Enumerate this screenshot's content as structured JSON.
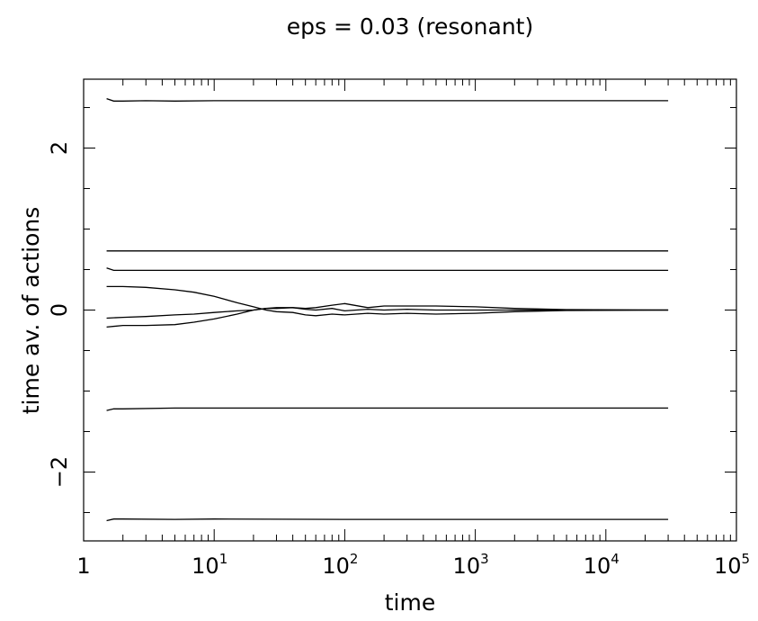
{
  "chart_data": {
    "type": "line",
    "title": "eps = 0.03 (resonant)",
    "xlabel": "time",
    "ylabel": "time av. of actions",
    "xscale": "log",
    "xlim": [
      1,
      100000
    ],
    "ylim": [
      -2.85,
      2.85
    ],
    "grid": false,
    "legend": "none",
    "x_ticks": [
      {
        "base": "1",
        "exp": ""
      },
      {
        "base": "10",
        "exp": "1"
      },
      {
        "base": "10",
        "exp": "2"
      },
      {
        "base": "10",
        "exp": "3"
      },
      {
        "base": "10",
        "exp": "4"
      },
      {
        "base": "10",
        "exp": "5"
      }
    ],
    "y_ticks": [
      "−2",
      "0",
      "2"
    ],
    "y_tick_values": [
      -2,
      0,
      2
    ],
    "line_color": "#000000",
    "series": [
      {
        "x": [
          1.5,
          1.7,
          2,
          3,
          5,
          10,
          30,
          100,
          1000,
          30000
        ],
        "y": [
          2.61,
          2.58,
          2.58,
          2.585,
          2.58,
          2.585,
          2.585,
          2.585,
          2.585,
          2.585
        ]
      },
      {
        "x": [
          1.5,
          2,
          5,
          10,
          100,
          1000,
          30000
        ],
        "y": [
          0.73,
          0.73,
          0.73,
          0.73,
          0.73,
          0.73,
          0.73
        ]
      },
      {
        "x": [
          1.5,
          1.7,
          2,
          5,
          10,
          100,
          1000,
          30000
        ],
        "y": [
          0.52,
          0.49,
          0.49,
          0.49,
          0.49,
          0.49,
          0.49,
          0.49
        ]
      },
      {
        "x": [
          1.5,
          2,
          3,
          5,
          7,
          10,
          15,
          20,
          25,
          30,
          40,
          50,
          60,
          80,
          100,
          150,
          200,
          300,
          500,
          1000,
          2000,
          5000,
          30000
        ],
        "y": [
          0.29,
          0.29,
          0.28,
          0.25,
          0.22,
          0.17,
          0.09,
          0.04,
          0.0,
          -0.02,
          -0.03,
          -0.06,
          -0.07,
          -0.05,
          -0.06,
          -0.04,
          -0.05,
          -0.04,
          -0.05,
          -0.04,
          -0.02,
          -0.005,
          0.0
        ]
      },
      {
        "x": [
          1.5,
          2,
          3,
          5,
          7,
          10,
          15,
          20,
          25,
          30,
          40,
          50,
          60,
          80,
          100,
          150,
          200,
          300,
          500,
          1000,
          2000,
          5000,
          30000
        ],
        "y": [
          -0.1,
          -0.09,
          -0.08,
          -0.06,
          -0.05,
          -0.03,
          -0.01,
          0.0,
          0.02,
          0.02,
          0.03,
          0.02,
          0.03,
          0.06,
          0.08,
          0.03,
          0.05,
          0.05,
          0.05,
          0.04,
          0.02,
          0.005,
          0.0
        ]
      },
      {
        "x": [
          1.5,
          2,
          3,
          5,
          7,
          10,
          15,
          20,
          25,
          30,
          40,
          50,
          60,
          80,
          100,
          150,
          200,
          300,
          500,
          1000,
          2000,
          5000,
          30000
        ],
        "y": [
          -0.21,
          -0.19,
          -0.19,
          -0.18,
          -0.15,
          -0.11,
          -0.05,
          0.0,
          0.02,
          0.03,
          0.03,
          0.01,
          0.0,
          0.02,
          -0.01,
          0.01,
          0.0,
          0.01,
          0.0,
          0.0,
          0.0,
          0.0,
          0.0
        ]
      },
      {
        "x": [
          1.5,
          1.7,
          2,
          5,
          10,
          100,
          1000,
          30000
        ],
        "y": [
          -1.24,
          -1.22,
          -1.22,
          -1.21,
          -1.21,
          -1.21,
          -1.21,
          -1.21
        ]
      },
      {
        "x": [
          1.5,
          1.7,
          2,
          5,
          10,
          100,
          1000,
          30000
        ],
        "y": [
          -2.6,
          -2.58,
          -2.58,
          -2.585,
          -2.58,
          -2.585,
          -2.585,
          -2.585
        ]
      }
    ]
  }
}
